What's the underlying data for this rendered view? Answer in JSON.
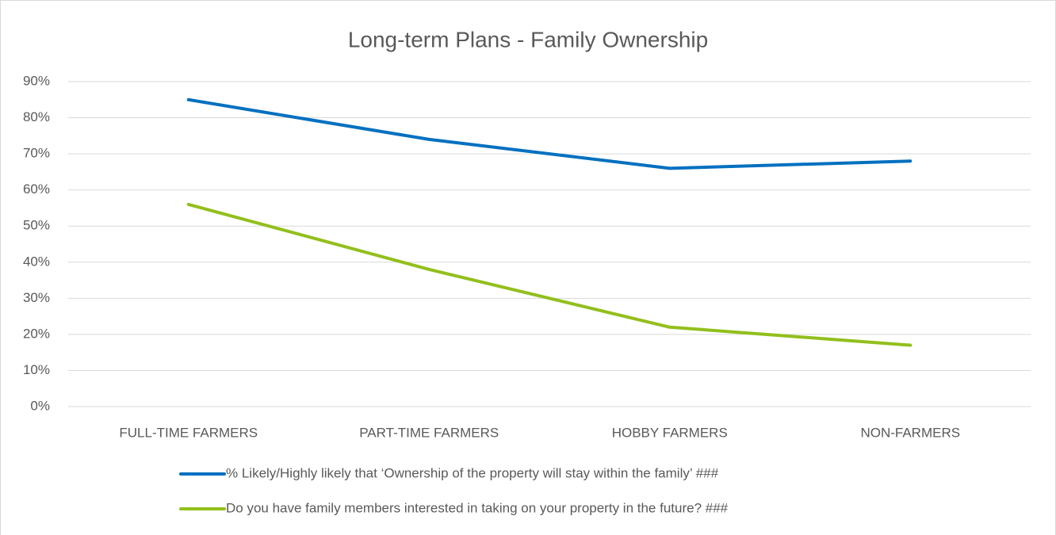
{
  "chart_data": {
    "type": "line",
    "title": "Long-term Plans - Family Ownership",
    "categories": [
      "FULL-TIME FARMERS",
      "PART-TIME FARMERS",
      "HOBBY FARMERS",
      "NON-FARMERS"
    ],
    "series": [
      {
        "name": "% Likely/Highly likely that ‘Ownership of the property will stay within the family’ ###",
        "color": "#0070c0",
        "values": [
          85,
          74,
          66,
          68
        ]
      },
      {
        "name": "Do you have family members interested in taking on your property in the future? ###",
        "color": "#92bf1c",
        "values": [
          56,
          38,
          22,
          17
        ]
      }
    ],
    "ylim": [
      0,
      90
    ],
    "yticks": [
      {
        "value": 0,
        "label": "0%"
      },
      {
        "value": 10,
        "label": "10%"
      },
      {
        "value": 20,
        "label": "20%"
      },
      {
        "value": 30,
        "label": "30%"
      },
      {
        "value": 40,
        "label": "40%"
      },
      {
        "value": 50,
        "label": "50%"
      },
      {
        "value": 60,
        "label": "60%"
      },
      {
        "value": 70,
        "label": "70%"
      },
      {
        "value": 80,
        "label": "80%"
      },
      {
        "value": 90,
        "label": "90%"
      }
    ],
    "grid": true
  }
}
